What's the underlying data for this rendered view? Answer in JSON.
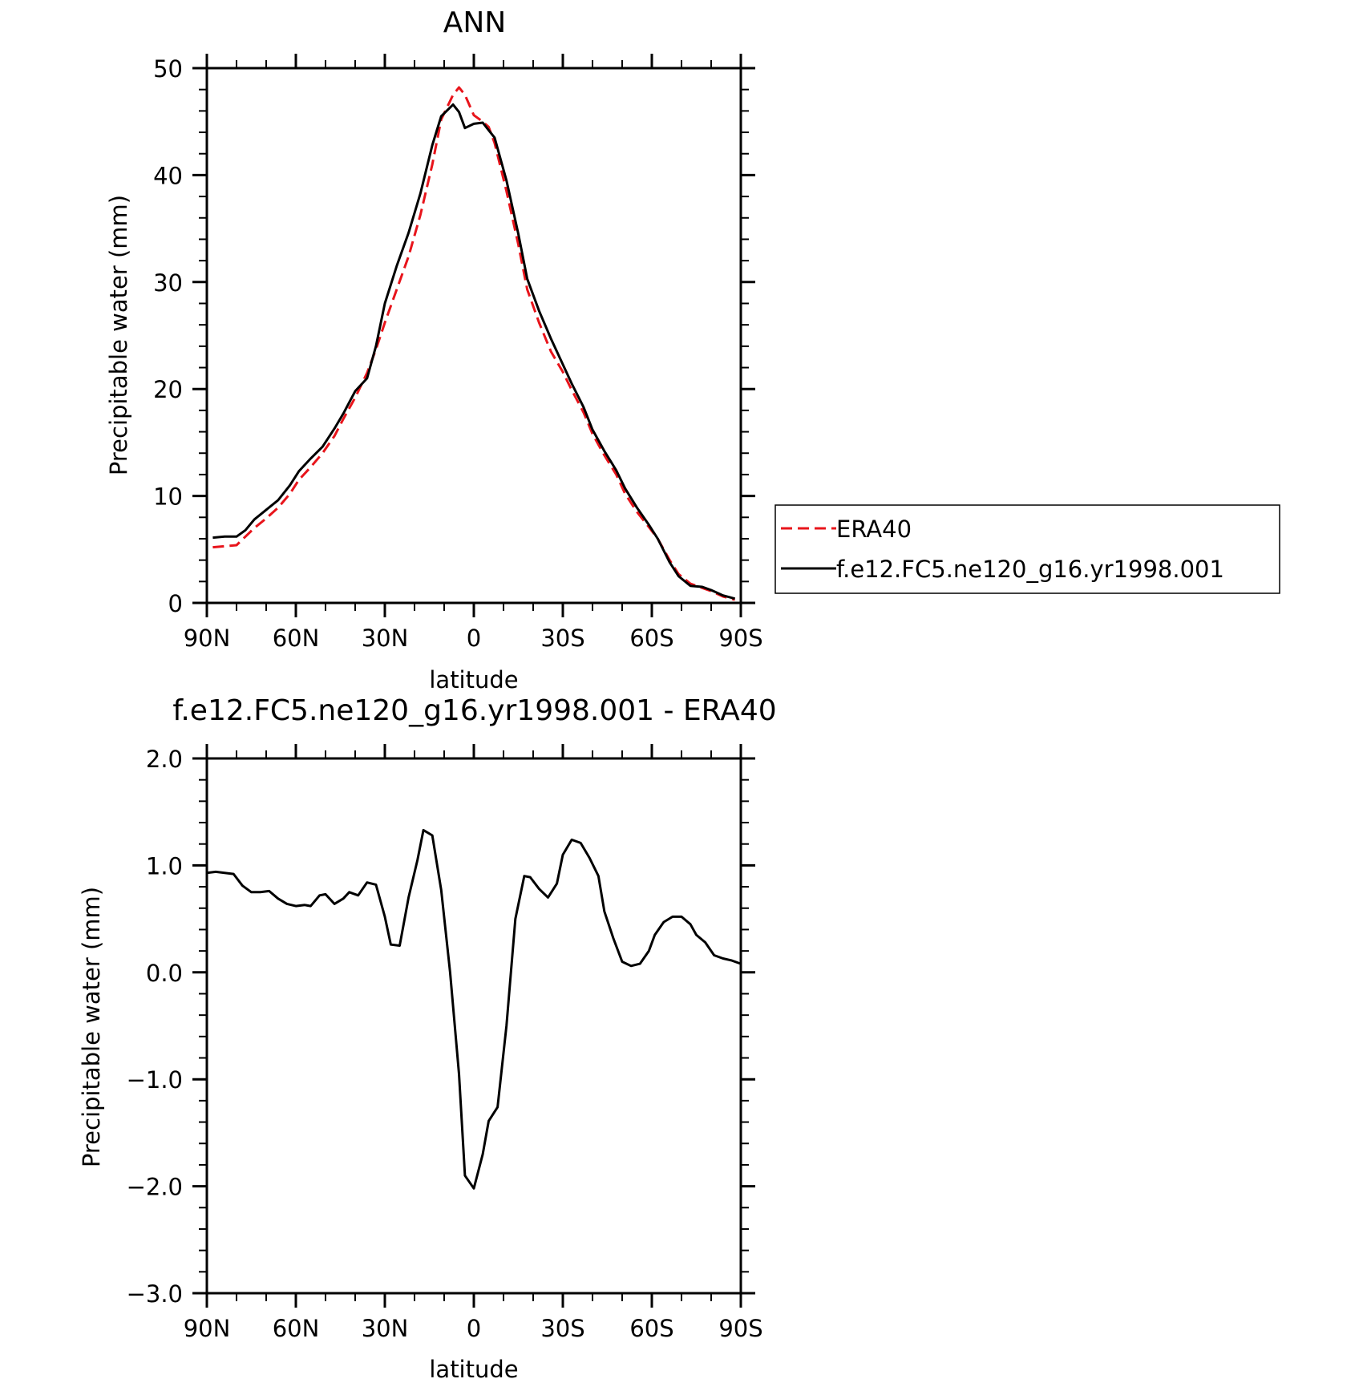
{
  "chart_data": [
    {
      "type": "line",
      "title": "ANN",
      "xlabel": "latitude",
      "ylabel": "Precipitable water (mm)",
      "xlim": [
        90,
        -90
      ],
      "ylim": [
        0,
        50
      ],
      "x_tick_values": [
        90,
        60,
        30,
        0,
        -30,
        -60,
        -90
      ],
      "x_tick_labels": [
        "90N",
        "60N",
        "30N",
        "0",
        "30S",
        "60S",
        "90S"
      ],
      "y_tick_values": [
        0,
        10,
        20,
        30,
        40,
        50
      ],
      "y_tick_labels": [
        "0",
        "10",
        "20",
        "30",
        "40",
        "50"
      ],
      "grid": false,
      "legend_position": "right",
      "series": [
        {
          "name": "ERA40",
          "color": "#e8141b",
          "style": "dashed",
          "x": [
            88,
            84,
            80,
            77,
            74,
            70,
            66,
            62,
            59,
            55,
            51,
            47,
            44,
            40,
            36,
            33,
            30,
            26,
            22,
            18,
            14,
            11,
            7,
            5,
            3,
            0,
            -3,
            -5,
            -7,
            -11,
            -15,
            -18,
            -22,
            -26,
            -30,
            -33,
            -37,
            -40,
            -44,
            -48,
            -51,
            -55,
            -59,
            -62,
            -66,
            -69,
            -73,
            -77,
            -80,
            -84,
            -88
          ],
          "y": [
            5.2,
            5.3,
            5.4,
            6.2,
            7.0,
            7.9,
            8.9,
            10.2,
            11.5,
            12.7,
            14.0,
            15.6,
            17.2,
            19.2,
            21.5,
            23.7,
            26.2,
            29.3,
            32.4,
            36.3,
            41.0,
            45.2,
            47.5,
            48.2,
            47.5,
            45.6,
            45.0,
            44.5,
            43.0,
            38.5,
            33.5,
            29.3,
            26.2,
            23.5,
            21.6,
            19.9,
            17.8,
            15.8,
            13.8,
            12.0,
            10.2,
            8.5,
            7.1,
            6.0,
            4.0,
            2.7,
            1.8,
            1.4,
            1.1,
            0.6,
            0.3
          ]
        },
        {
          "name": "f.e12.FC5.ne120_g16.yr1998.001",
          "color": "#000000",
          "style": "solid",
          "x": [
            88,
            84,
            80,
            77,
            74,
            70,
            66,
            62,
            59,
            55,
            51,
            47,
            44,
            40,
            36,
            33,
            30,
            26,
            22,
            18,
            14,
            11,
            7,
            5,
            3,
            0,
            -3,
            -5,
            -7,
            -11,
            -15,
            -18,
            -22,
            -26,
            -30,
            -33,
            -37,
            -40,
            -44,
            -48,
            -51,
            -55,
            -59,
            -62,
            -66,
            -69,
            -73,
            -77,
            -80,
            -84,
            -88
          ],
          "y": [
            6.1,
            6.2,
            6.2,
            6.8,
            7.8,
            8.7,
            9.6,
            11.0,
            12.3,
            13.5,
            14.6,
            16.3,
            17.7,
            19.8,
            21.0,
            24.0,
            28.0,
            31.5,
            34.6,
            38.3,
            42.8,
            45.5,
            46.6,
            45.9,
            44.4,
            44.8,
            44.9,
            44.2,
            43.5,
            39.5,
            34.5,
            30.3,
            27.3,
            24.7,
            22.3,
            20.5,
            18.3,
            16.2,
            14.2,
            12.4,
            10.7,
            8.9,
            7.3,
            6.0,
            3.8,
            2.5,
            1.6,
            1.5,
            1.2,
            0.7,
            0.4
          ]
        }
      ]
    },
    {
      "type": "line",
      "title": "f.e12.FC5.ne120_g16.yr1998.001 - ERA40",
      "xlabel": "latitude",
      "ylabel": "Precipitable water (mm)",
      "xlim": [
        90,
        -90
      ],
      "ylim": [
        -3.0,
        2.0
      ],
      "x_tick_values": [
        90,
        60,
        30,
        0,
        -30,
        -60,
        -90
      ],
      "x_tick_labels": [
        "90N",
        "60N",
        "30N",
        "0",
        "30S",
        "60S",
        "90S"
      ],
      "y_tick_values": [
        -3.0,
        -2.0,
        -1.0,
        0.0,
        1.0,
        2.0
      ],
      "y_tick_labels": [
        "−3.0",
        "−2.0",
        "−1.0",
        "0.0",
        "1.0",
        "2.0"
      ],
      "grid": false,
      "series": [
        {
          "color": "#000000",
          "style": "solid",
          "x": [
            90,
            87,
            84,
            81,
            78,
            75,
            72,
            69,
            66,
            63,
            60,
            57,
            55,
            52,
            50,
            47,
            44,
            42,
            39,
            36,
            33,
            30,
            28,
            25,
            22,
            19,
            17,
            14,
            11,
            8,
            5,
            3,
            0,
            -3,
            -5,
            -8,
            -11,
            -14,
            -17,
            -19,
            -22,
            -25,
            -28,
            -30,
            -33,
            -36,
            -39,
            -42,
            -44,
            -47,
            -50,
            -53,
            -56,
            -59,
            -61,
            -64,
            -67,
            -70,
            -73,
            -75,
            -78,
            -81,
            -84,
            -87,
            -90
          ],
          "y": [
            0.93,
            0.94,
            0.93,
            0.92,
            0.81,
            0.75,
            0.75,
            0.76,
            0.69,
            0.64,
            0.62,
            0.63,
            0.62,
            0.72,
            0.73,
            0.64,
            0.69,
            0.75,
            0.72,
            0.84,
            0.82,
            0.52,
            0.26,
            0.25,
            0.7,
            1.05,
            1.33,
            1.28,
            0.77,
            0.0,
            -0.95,
            -1.9,
            -2.02,
            -1.7,
            -1.39,
            -1.26,
            -0.5,
            0.5,
            0.9,
            0.89,
            0.78,
            0.7,
            0.83,
            1.1,
            1.24,
            1.21,
            1.07,
            0.9,
            0.57,
            0.32,
            0.1,
            0.06,
            0.08,
            0.2,
            0.35,
            0.47,
            0.52,
            0.52,
            0.45,
            0.35,
            0.28,
            0.16,
            0.13,
            0.11,
            0.08
          ]
        }
      ]
    }
  ]
}
